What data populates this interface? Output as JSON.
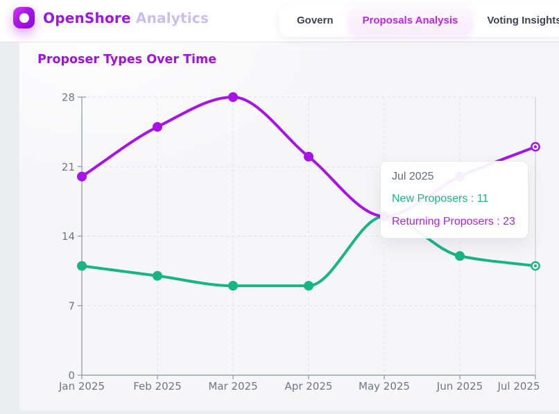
{
  "header": {
    "brand": {
      "primary": "OpenShore",
      "secondary": "Analytics"
    },
    "nav": [
      {
        "label": "Govern",
        "active": false
      },
      {
        "label": "Proposals Analysis",
        "active": true
      },
      {
        "label": "Voting Insights*",
        "active": false
      }
    ]
  },
  "main": {
    "title": "Proposer Types Over Time"
  },
  "tooltip": {
    "title": "Jul 2025",
    "rows": [
      {
        "label": "New Proposers",
        "value": 11,
        "text": "New Proposers : 11",
        "color": "#1db384"
      },
      {
        "label": "Returning Proposers",
        "value": 23,
        "text": "Returning Proposers : 23",
        "color": "#b21fe2"
      }
    ]
  },
  "chart_data": {
    "type": "line",
    "title": "Proposer Types Over Time",
    "x": [
      "Jan 2025",
      "Feb 2025",
      "Mar 2025",
      "Apr 2025",
      "May 2025",
      "Jun 2025",
      "Jul 2025"
    ],
    "xlabel": "",
    "ylabel": "",
    "ylim": [
      0,
      28
    ],
    "yticks": [
      0,
      7,
      14,
      21,
      28
    ],
    "grid": true,
    "legend_position": "none",
    "curve": "monotone",
    "series": [
      {
        "name": "New Proposers",
        "color": "#17b584",
        "values": [
          11,
          10,
          9,
          9,
          16,
          12,
          11
        ]
      },
      {
        "name": "Returning Proposers",
        "color": "#a812e8",
        "values": [
          20,
          25,
          28,
          22,
          16,
          20,
          23
        ]
      }
    ],
    "hover": {
      "index": 6,
      "label": "Jul 2025"
    }
  },
  "colors": {
    "brand_purple": "#9d17e3",
    "brand_light": "#ccbdec",
    "accent_purple": "#a812e8",
    "accent_green": "#17b584",
    "nav_active_text": "#bf23e8",
    "nav_text": "#3b4252",
    "axis_label": "#6e7585",
    "card_bg": "#f6f6f8",
    "page_bg": "#ebedee"
  }
}
